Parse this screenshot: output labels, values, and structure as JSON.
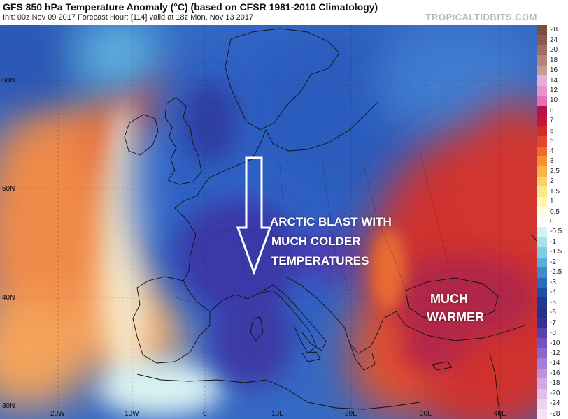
{
  "header": {
    "title": "GFS 850 hPa Temperature Anomaly (°C) (based on CFSR 1981-2010 Climatology)",
    "subtitle": "Init: 00z Nov 09 2017   Forecast Hour: [114]   valid at 18z Mon, Nov 13 2017",
    "brand": "TROPICALTIDBITS.COM"
  },
  "annotations": {
    "arctic_line1": "ARCTIC BLAST WITH",
    "arctic_line2": "MUCH COLDER",
    "arctic_line3": "TEMPERATURES",
    "warm_line1": "MUCH",
    "warm_line2": "WARMER"
  },
  "axes": {
    "lat_labels": [
      "60N",
      "50N",
      "40N",
      "30N"
    ],
    "lon_labels": [
      "20W",
      "10W",
      "0",
      "10E",
      "20E",
      "30E",
      "40E"
    ]
  },
  "colorbar": {
    "labels": [
      "28",
      "24",
      "20",
      "18",
      "16",
      "14",
      "12",
      "10",
      "8",
      "7",
      "6",
      "5",
      "4",
      "3",
      "2.5",
      "2",
      "1.5",
      "1",
      "0.5",
      "0",
      "-0.5",
      "-1",
      "-1.5",
      "-2",
      "-2.5",
      "-3",
      "-4",
      "-5",
      "-6",
      "-7",
      "-8",
      "-10",
      "-12",
      "-14",
      "-16",
      "-18",
      "-20",
      "-24",
      "-28"
    ],
    "colors": [
      "#7a4b3e",
      "#8d5b4d",
      "#a06e60",
      "#b58478",
      "#c89c92",
      "#e4aed8",
      "#e892cd",
      "#e36fb9",
      "#b3124a",
      "#c4163a",
      "#d42a2a",
      "#e3472b",
      "#ef6a2e",
      "#f6922f",
      "#f9b54a",
      "#fcd36a",
      "#fee88c",
      "#fff6b8",
      "#fffde6",
      "#ffffff",
      "#d4f2f4",
      "#aae3ea",
      "#7fcde3",
      "#5aaedb",
      "#3e8ccc",
      "#2a6bbd",
      "#1f4ea6",
      "#1d3a8c",
      "#23308a",
      "#3a2f96",
      "#5a42ad",
      "#7154c1",
      "#8a67cf",
      "#a57ed8",
      "#be93de",
      "#d3a9e4",
      "#e2bfea",
      "#eed2ef",
      "#f6e3f3"
    ]
  },
  "colors": {
    "cold_core": "#3a3aa8",
    "cold": "#2f62c4",
    "warm": "#d0322f",
    "warm_core": "#b0264a"
  }
}
